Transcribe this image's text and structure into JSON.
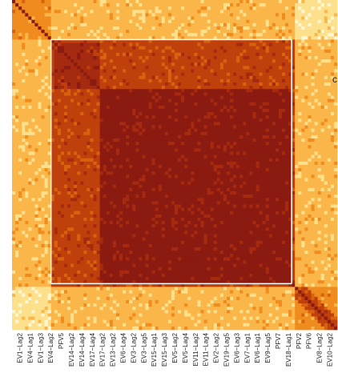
{
  "chart_data": {
    "type": "heatmap",
    "colors": {
      "very_high": "#8b1a10",
      "high": "#a52a0f",
      "mid_high": "#c0400c",
      "mid": "#d9620e",
      "mid_low": "#f08c1e",
      "low": "#fbb64a",
      "very_low": "#fde08c",
      "min": "#fff6d2"
    },
    "x_tick_labels": [
      "EV1−Lag2",
      "EV4−Lag1",
      "EV1−Lag3",
      "EV4−Lag2",
      "PFV5",
      "EV14−Lag2",
      "EV14−Lag4",
      "EV17−Lag4",
      "EV17−Lag2",
      "EV13−Lag2",
      "EV6−Lag4",
      "EV3−Lag2",
      "EV3−Lag5",
      "EV15−Lag1",
      "EV15−Lag3",
      "EV5−Lag2",
      "EV5−Lag4",
      "EV11−Lag2",
      "EV11−Lag4",
      "EV2−Lag2",
      "EV19−Lag5",
      "EV6−Lag3",
      "EV7−Lag1",
      "EV6−Lag1",
      "EV9−Lag5",
      "PFV7",
      "EV18−Lag1",
      "PFV2",
      "PFV6",
      "EV8−Lag2",
      "EV10−Lag2"
    ],
    "side_text": "c",
    "blocks": [
      {
        "start": 0.12,
        "end": 0.86,
        "level": "mid_high"
      },
      {
        "start": 0.27,
        "end": 0.85,
        "level": "very_high"
      },
      {
        "start": 0.13,
        "end": 0.26,
        "level": "high"
      }
    ]
  }
}
